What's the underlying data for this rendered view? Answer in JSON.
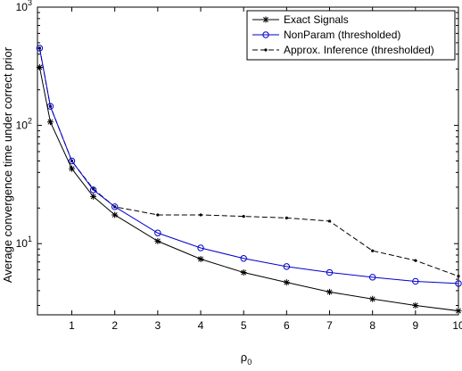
{
  "chart_data": {
    "type": "line",
    "title": "",
    "xlabel": "ρ",
    "xlabel_subscript": "0",
    "ylabel": "Average convergence time under correct prior",
    "xlim": [
      0.2,
      10
    ],
    "ylim": [
      2.5,
      1000
    ],
    "yscale": "log",
    "grid": false,
    "legend_position": "top-right",
    "x_ticks": [
      1,
      2,
      3,
      4,
      5,
      6,
      7,
      8,
      9,
      10
    ],
    "x_tick_labels": [
      "1",
      "2",
      "3",
      "4",
      "5",
      "6",
      "7",
      "8",
      "9",
      "10"
    ],
    "y_ticks": [
      {
        "value": 10,
        "base": "10",
        "exp": "1"
      },
      {
        "value": 100,
        "base": "10",
        "exp": "2"
      },
      {
        "value": 1000,
        "base": "10",
        "exp": "3"
      }
    ],
    "series": [
      {
        "name": "Exact Signals",
        "color": "#000000",
        "line_style": "solid",
        "marker": "star",
        "x": [
          0.25,
          0.5,
          1,
          1.5,
          2,
          3,
          4,
          5,
          6,
          7,
          8,
          9,
          10
        ],
        "y": [
          310,
          107,
          43,
          25,
          17.5,
          10.5,
          7.4,
          5.7,
          4.7,
          3.9,
          3.4,
          3.0,
          2.7
        ]
      },
      {
        "name": "NonParam (thresholded)",
        "color": "#0000cc",
        "line_style": "solid",
        "marker": "circle",
        "x": [
          0.25,
          0.5,
          1,
          1.5,
          2,
          3,
          4,
          5,
          6,
          7,
          8,
          9,
          10
        ],
        "y": [
          450,
          145,
          50,
          28.5,
          20.5,
          12.3,
          9.2,
          7.5,
          6.4,
          5.7,
          5.2,
          4.8,
          4.6
        ]
      },
      {
        "name": "Approx. Inference (thresholded)",
        "color": "#000000",
        "line_style": "dashed",
        "marker": "dot",
        "x": [
          0.25,
          0.5,
          1,
          1.5,
          2,
          3,
          4,
          5,
          6,
          7,
          8,
          9,
          10
        ],
        "y": [
          450,
          145,
          50,
          29,
          20.5,
          17.5,
          17.5,
          17.0,
          16.5,
          15.5,
          8.7,
          7.2,
          5.3
        ]
      }
    ]
  }
}
